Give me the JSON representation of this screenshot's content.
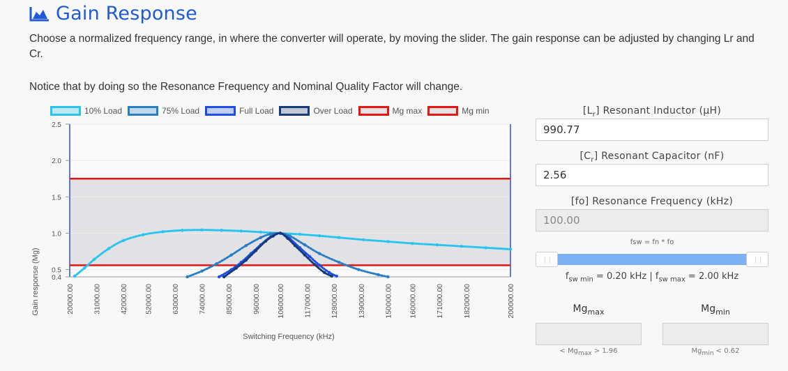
{
  "header": {
    "title": "Gain Response",
    "icon": "area-chart-icon",
    "accent": "#1f5bd8"
  },
  "description": {
    "line1": "Choose a normalized frequency range, in where the converter will operate, by moving the slider. The gain response can be adjusted by changing Lr and Cr.",
    "line2": "Notice that by doing so the Resonance Frequency and Nominal Quality Factor will change."
  },
  "legend": [
    {
      "label": "10% Load",
      "color": "#29c4ef",
      "fill": "#bfe8f7"
    },
    {
      "label": "75% Load",
      "color": "#2a7ec4",
      "fill": "#c3d7ea"
    },
    {
      "label": "Full Load",
      "color": "#1f4ee6",
      "fill": "#c2cdf3"
    },
    {
      "label": "Over Load",
      "color": "#173a78",
      "fill": "#c0c8d6"
    },
    {
      "label": "Mg max",
      "color": "#e81414",
      "fill": "#e3e3e3"
    },
    {
      "label": "Mg min",
      "color": "#e81414",
      "fill": "#e3e3e3"
    }
  ],
  "chart_data": {
    "type": "line",
    "ylabel": "Gain response (Mg)",
    "xlabel": "Switching Frequency (kHz)",
    "ylim": [
      0.4,
      2.5
    ],
    "xlim": [
      20000,
      200000
    ],
    "y_ticks": [
      "2.5",
      "2.0",
      "1.5",
      "1.0",
      "0.5",
      "0.4"
    ],
    "x_ticks": [
      "20000.00",
      "31000.00",
      "42000.00",
      "52000.00",
      "63000.00",
      "74000.00",
      "85000.00",
      "96000.00",
      "106000.00",
      "117000.00",
      "128000.00",
      "139000.00",
      "150000.00",
      "160000.00",
      "171000.00",
      "182000.00",
      "200000.00"
    ],
    "mg_max": 1.75,
    "mg_min": 0.56,
    "shaded_region": [
      0.56,
      1.75
    ],
    "series": [
      {
        "name": "10% Load",
        "color": "#29c4ef",
        "x": [
          22000,
          26000,
          30000,
          36000,
          42000,
          50000,
          58000,
          66000,
          74000,
          82000,
          90000,
          98000,
          106000,
          114000,
          122000,
          130000,
          140000,
          150000,
          160000,
          170000,
          180000,
          190000,
          200000
        ],
        "y": [
          0.41,
          0.52,
          0.64,
          0.79,
          0.9,
          0.98,
          1.02,
          1.04,
          1.045,
          1.04,
          1.03,
          1.015,
          1.0,
          0.985,
          0.965,
          0.94,
          0.91,
          0.885,
          0.86,
          0.84,
          0.82,
          0.8,
          0.78
        ]
      },
      {
        "name": "75% Load",
        "color": "#2a7ec4",
        "x": [
          68000,
          74000,
          80000,
          86000,
          92000,
          98000,
          102000,
          106000,
          110000,
          116000,
          122000,
          130000,
          138000,
          146000,
          150000
        ],
        "y": [
          0.4,
          0.48,
          0.58,
          0.7,
          0.83,
          0.94,
          0.99,
          1.0,
          0.96,
          0.84,
          0.72,
          0.6,
          0.5,
          0.43,
          0.4
        ]
      },
      {
        "name": "Full Load",
        "color": "#1f4ee6",
        "x": [
          81000,
          86000,
          90000,
          94000,
          98000,
          102000,
          106000,
          110000,
          114000,
          118000,
          122000,
          126000,
          129000
        ],
        "y": [
          0.4,
          0.5,
          0.6,
          0.72,
          0.84,
          0.95,
          1.0,
          0.92,
          0.8,
          0.68,
          0.56,
          0.46,
          0.41
        ]
      },
      {
        "name": "Over Load",
        "color": "#173a78",
        "x": [
          83000,
          88000,
          92000,
          96000,
          100000,
          103000,
          106000,
          109000,
          112000,
          116000,
          120000,
          124000,
          127000
        ],
        "y": [
          0.4,
          0.52,
          0.63,
          0.76,
          0.89,
          0.96,
          1.0,
          0.93,
          0.83,
          0.7,
          0.57,
          0.46,
          0.41
        ]
      }
    ]
  },
  "inputs": {
    "lr_label": "[L",
    "lr_sub": "r",
    "lr_label_tail": "] Resonant Inductor (µH)",
    "lr_value": "990.77",
    "cr_label": "[C",
    "cr_sub": "r",
    "cr_label_tail": "] Resonant Capacitor (nF)",
    "cr_value": "2.56",
    "fo_label": "[fo] Resonance Frequency (kHz)",
    "fo_value": "100.00"
  },
  "slider": {
    "formula": "fsw = fn * fo",
    "fsw_prefix": "f",
    "fsw_min_sub": "sw min",
    "fsw_min_text": " = 0.20 kHz | f",
    "fsw_max_sub": "sw max",
    "fsw_max_text": " = 2.00 kHz",
    "range_value": [
      0.2,
      2.0
    ],
    "track_color": "#7db3f5"
  },
  "mg": {
    "max_title": "Mg",
    "max_sub": "max",
    "min_title": "Mg",
    "min_sub": "min",
    "max_hint_pre": "< Mg",
    "max_hint_sub": "max",
    "max_hint_post": " > 1.96",
    "min_hint_pre": "Mg",
    "min_hint_sub": "min",
    "min_hint_post": " < 0.62"
  }
}
